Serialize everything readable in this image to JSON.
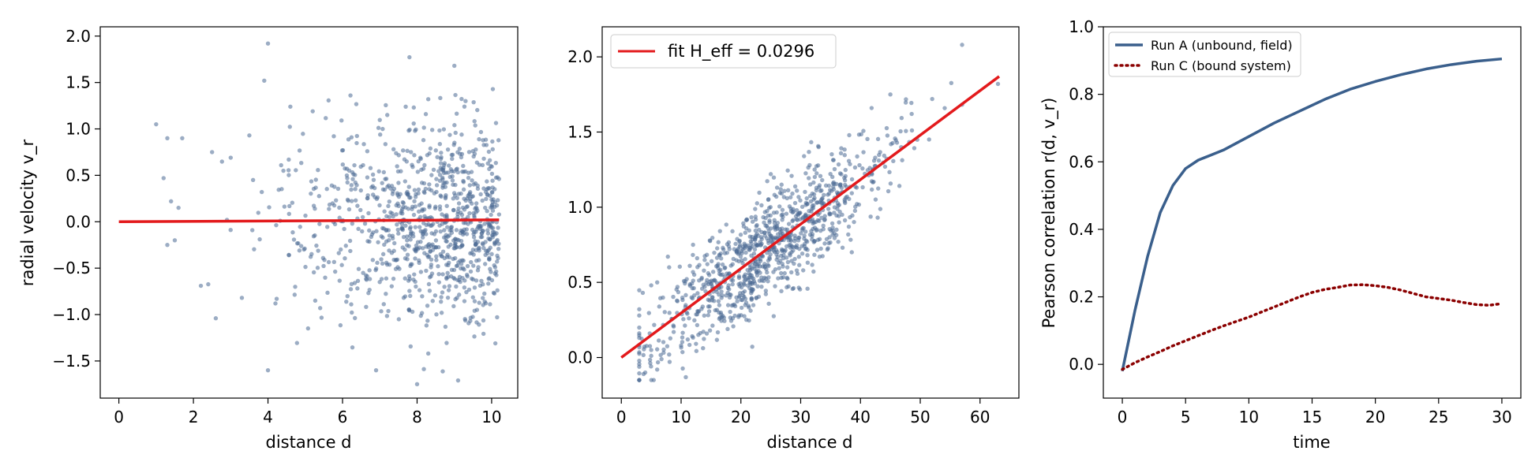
{
  "colors": {
    "points": "#4a6a93",
    "fit": "#e31a1c",
    "run_a": "#3a5f8c",
    "run_c": "#8b0000"
  },
  "chart_data": [
    {
      "type": "scatter",
      "xlabel": "distance d",
      "ylabel": "radial velocity v_r",
      "xlim": [
        -0.5,
        10.7
      ],
      "ylim": [
        -1.9,
        2.1
      ],
      "xticks": [
        0,
        2,
        4,
        6,
        8,
        10
      ],
      "yticks": [
        -1.5,
        -1.0,
        -0.5,
        0.0,
        0.5,
        1.0,
        1.5,
        2.0
      ],
      "ytick_labels": [
        "−1.5",
        "−1.0",
        "−0.5",
        "0.0",
        "0.5",
        "1.0",
        "1.5",
        "2.0"
      ],
      "n_points": 1000,
      "points": [
        [
          1.0,
          1.05
        ],
        [
          1.3,
          0.9
        ],
        [
          1.7,
          0.9
        ],
        [
          1.2,
          0.47
        ],
        [
          1.4,
          0.22
        ],
        [
          1.6,
          0.15
        ],
        [
          1.3,
          -0.25
        ],
        [
          1.5,
          -0.2
        ],
        [
          2.2,
          -0.69
        ],
        [
          2.6,
          -1.04
        ],
        [
          3.3,
          -0.82
        ],
        [
          3.0,
          0.69
        ],
        [
          3.9,
          1.52
        ],
        [
          4.0,
          1.92
        ],
        [
          4.6,
          1.24
        ],
        [
          5.2,
          1.19
        ],
        [
          4.0,
          -1.6
        ],
        [
          4.2,
          -0.88
        ],
        [
          5.4,
          -0.93
        ],
        [
          6.9,
          -1.6
        ],
        [
          8.0,
          -1.75
        ],
        [
          8.3,
          -1.42
        ],
        [
          9.1,
          -1.71
        ],
        [
          10.1,
          -1.31
        ],
        [
          9.0,
          1.68
        ],
        [
          9.3,
          1.3
        ],
        [
          8.3,
          1.32
        ],
        [
          7.2,
          1.15
        ],
        [
          2.5,
          0.75
        ],
        [
          3.5,
          0.93
        ],
        [
          3.6,
          0.45
        ],
        [
          2.9,
          0.02
        ]
      ],
      "fit_line": {
        "x": [
          0,
          10.2
        ],
        "y": [
          0.0,
          0.02
        ]
      }
    },
    {
      "type": "scatter",
      "xlabel": "distance d",
      "ylabel": "",
      "xlim": [
        -3.2,
        66.5
      ],
      "ylim": [
        -0.27,
        2.2
      ],
      "xticks": [
        0,
        10,
        20,
        30,
        40,
        50,
        60
      ],
      "yticks": [
        0.0,
        0.5,
        1.0,
        1.5,
        2.0
      ],
      "ytick_labels": [
        "0.0",
        "0.5",
        "1.0",
        "1.5",
        "2.0"
      ],
      "n_points": 1000,
      "points": [
        [
          57,
          2.08
        ],
        [
          63,
          1.82
        ],
        [
          3,
          -0.15
        ],
        [
          4,
          -0.1
        ],
        [
          5,
          0.05
        ],
        [
          6,
          -0.08
        ],
        [
          8,
          0.02
        ],
        [
          10,
          0.08
        ],
        [
          5,
          0.48
        ],
        [
          6,
          0.5
        ],
        [
          8,
          0.6
        ],
        [
          12,
          0.75
        ],
        [
          25,
          1.22
        ],
        [
          33,
          1.4
        ],
        [
          45,
          1.75
        ],
        [
          52,
          1.72
        ]
      ],
      "fit_line": {
        "x": [
          0,
          63.2
        ],
        "y": [
          0.0,
          1.87
        ],
        "slope": 0.0296
      },
      "legend": {
        "position": "upper-left",
        "label": "fit H_eff = 0.0296"
      }
    },
    {
      "type": "line",
      "xlabel": "time",
      "ylabel": "Pearson correlation r(d, v_r)",
      "xlim": [
        -1.5,
        31.5
      ],
      "ylim": [
        -0.1,
        1.0
      ],
      "xticks": [
        0,
        5,
        10,
        15,
        20,
        25,
        30
      ],
      "yticks": [
        0.0,
        0.2,
        0.4,
        0.6,
        0.8,
        1.0
      ],
      "ytick_labels": [
        "0.0",
        "0.2",
        "0.4",
        "0.6",
        "0.8",
        "1.0"
      ],
      "legend": {
        "position": "upper-left"
      },
      "series": [
        {
          "name": "Run A (unbound, field)",
          "style": "solid",
          "x": [
            0,
            0.5,
            1,
            2,
            3,
            4,
            5,
            6,
            7,
            8,
            10,
            12,
            14,
            16,
            18,
            20,
            22,
            24,
            26,
            28,
            30
          ],
          "y": [
            -0.02,
            0.07,
            0.16,
            0.32,
            0.45,
            0.53,
            0.58,
            0.605,
            0.62,
            0.635,
            0.675,
            0.715,
            0.75,
            0.785,
            0.815,
            0.838,
            0.858,
            0.875,
            0.888,
            0.898,
            0.905
          ]
        },
        {
          "name": "Run C (bound system)",
          "style": "dotted",
          "x": [
            0,
            1,
            2,
            3,
            4,
            5,
            6,
            7,
            8,
            9,
            10,
            11,
            12,
            13,
            14,
            15,
            16,
            17,
            18,
            19,
            20,
            21,
            22,
            23,
            24,
            25,
            26,
            27,
            28,
            29,
            30
          ],
          "y": [
            -0.015,
            0.005,
            0.022,
            0.038,
            0.055,
            0.07,
            0.085,
            0.1,
            0.114,
            0.127,
            0.14,
            0.155,
            0.17,
            0.185,
            0.2,
            0.213,
            0.222,
            0.228,
            0.235,
            0.236,
            0.233,
            0.228,
            0.22,
            0.21,
            0.2,
            0.195,
            0.19,
            0.183,
            0.177,
            0.175,
            0.18
          ]
        }
      ]
    }
  ]
}
